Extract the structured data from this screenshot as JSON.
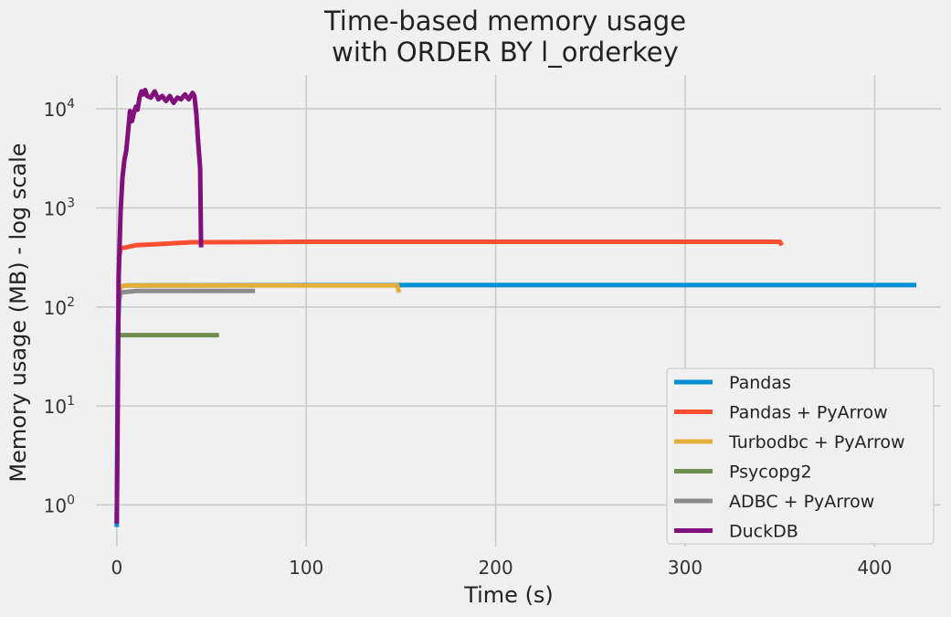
{
  "chart_data": {
    "type": "line",
    "title_line1": "Time-based memory usage",
    "title_line2": "with ORDER BY l_orderkey",
    "xlabel": "Time (s)",
    "ylabel": "Memory usage (MB) - log scale",
    "y_scale": "log",
    "xlim": [
      -11,
      435
    ],
    "ylim": [
      0.38,
      22000
    ],
    "x_ticks": [
      0,
      100,
      200,
      300,
      400
    ],
    "x_tick_labels": [
      "0",
      "100",
      "200",
      "300",
      "400"
    ],
    "y_ticks": [
      1,
      10,
      100,
      1000,
      10000
    ],
    "y_tick_base": "10",
    "y_tick_exponents": [
      "0",
      "1",
      "2",
      "3",
      "4"
    ],
    "grid": true,
    "legend_position": "lower right",
    "series": [
      {
        "name": "Pandas",
        "color": "#008fd5",
        "points": [
          [
            0,
            0.6
          ],
          [
            0.6,
            60
          ],
          [
            1.5,
            160
          ],
          [
            5,
            165
          ],
          [
            100,
            166
          ],
          [
            200,
            166
          ],
          [
            300,
            166
          ],
          [
            400,
            166
          ],
          [
            422,
            166
          ]
        ]
      },
      {
        "name": "Pandas + PyArrow",
        "color": "#fc4f30",
        "points": [
          [
            1,
            300
          ],
          [
            2,
            390
          ],
          [
            5,
            400
          ],
          [
            10,
            420
          ],
          [
            20,
            430
          ],
          [
            40,
            450
          ],
          [
            100,
            455
          ],
          [
            200,
            455
          ],
          [
            300,
            455
          ],
          [
            350,
            455
          ],
          [
            351,
            420
          ]
        ]
      },
      {
        "name": "Turbodbc + PyArrow",
        "color": "#e5ae38",
        "points": [
          [
            1,
            120
          ],
          [
            2,
            160
          ],
          [
            5,
            165
          ],
          [
            50,
            165
          ],
          [
            100,
            165
          ],
          [
            140,
            165
          ],
          [
            148,
            165
          ],
          [
            149,
            140
          ]
        ]
      },
      {
        "name": "Psycopg2",
        "color": "#6d904f",
        "points": [
          [
            1,
            52
          ],
          [
            54,
            52
          ]
        ]
      },
      {
        "name": "ADBC + PyArrow",
        "color": "#8b8b8b",
        "points": [
          [
            1,
            110
          ],
          [
            2,
            140
          ],
          [
            10,
            145
          ],
          [
            40,
            145
          ],
          [
            73,
            145
          ]
        ]
      },
      {
        "name": "DuckDB",
        "color": "#810f7c",
        "points": [
          [
            0,
            0.65
          ],
          [
            0.5,
            10
          ],
          [
            1,
            200
          ],
          [
            2,
            900
          ],
          [
            3,
            2000
          ],
          [
            4,
            3000
          ],
          [
            5,
            3800
          ],
          [
            6,
            6000
          ],
          [
            7,
            9500
          ],
          [
            8,
            7500
          ],
          [
            9,
            9000
          ],
          [
            10,
            10500
          ],
          [
            11,
            9800
          ],
          [
            12,
            13000
          ],
          [
            13,
            15000
          ],
          [
            14,
            14000
          ],
          [
            15,
            15500
          ],
          [
            16,
            13500
          ],
          [
            18,
            13000
          ],
          [
            20,
            15000
          ],
          [
            22,
            12500
          ],
          [
            24,
            13500
          ],
          [
            26,
            12000
          ],
          [
            28,
            13500
          ],
          [
            30,
            11500
          ],
          [
            32,
            13000
          ],
          [
            34,
            12500
          ],
          [
            36,
            14000
          ],
          [
            38,
            12500
          ],
          [
            40,
            14500
          ],
          [
            41,
            13500
          ],
          [
            42,
            9000
          ],
          [
            43,
            4500
          ],
          [
            44,
            2500
          ],
          [
            44.5,
            400
          ]
        ]
      }
    ]
  }
}
